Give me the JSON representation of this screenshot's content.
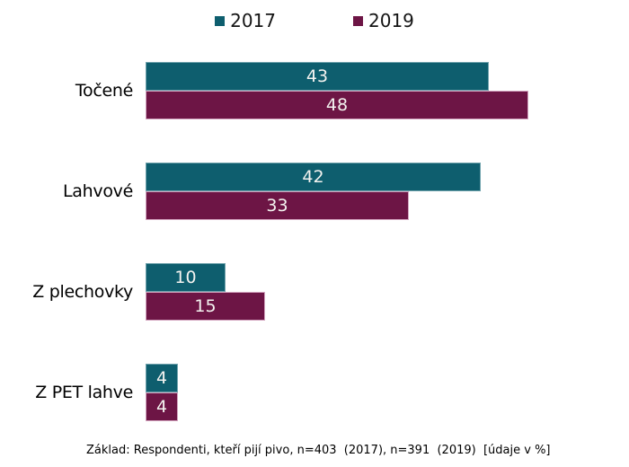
{
  "chart_data": {
    "type": "bar",
    "orientation": "horizontal",
    "title": "",
    "categories": [
      "Točené",
      "Lahvové",
      "Z plechovky",
      "Z PET lahve"
    ],
    "series": [
      {
        "name": "2017",
        "color": "#0E5E6E",
        "border_color": "#6FA2AC",
        "values": [
          43,
          42,
          10,
          4
        ]
      },
      {
        "name": "2019",
        "color": "#6D1545",
        "border_color": "#D2A3BE",
        "values": [
          48,
          33,
          15,
          4
        ]
      }
    ],
    "xlim": [
      0,
      48
    ],
    "grid": false,
    "legend_position": "top-center",
    "value_labels": "inside-center",
    "units": "%"
  },
  "legend": {
    "items": [
      {
        "label": "2017",
        "color": "#0E5E6E"
      },
      {
        "label": "2019",
        "color": "#6D1545"
      }
    ]
  },
  "footer": {
    "note": "Základ: Respondenti, kteří pijí pivo, n=403  (2017), n=391  (2019)  [údaje v %]"
  },
  "colors": {
    "background": "#FFFFFF",
    "category_text": "#000000",
    "value_text": "#F4F3F0"
  }
}
